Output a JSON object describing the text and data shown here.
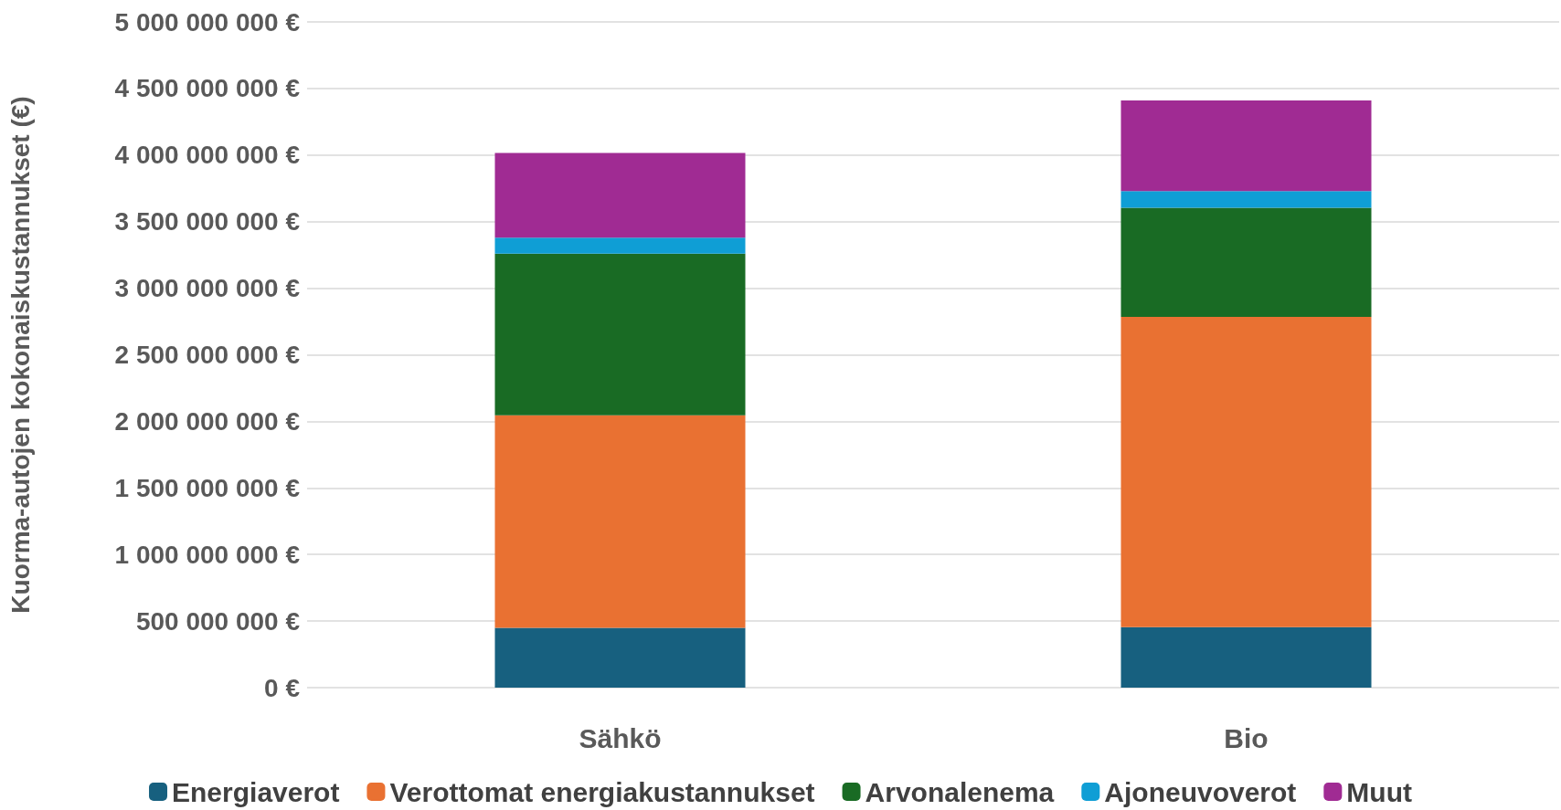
{
  "chart_data": {
    "type": "bar",
    "stacked": true,
    "ylabel": "Kuorma-autojen kokonaiskustannukset (€)",
    "categories": [
      "Sähkö",
      "Bio"
    ],
    "series": [
      {
        "name": "Energiaverot",
        "color": "#17607f",
        "values": [
          450000000,
          455000000
        ]
      },
      {
        "name": "Verottomat energiakustannukset",
        "color": "#e97132",
        "values": [
          1595000000,
          2330000000
        ]
      },
      {
        "name": "Arvonalenema",
        "color": "#196b24",
        "values": [
          1215000000,
          820000000
        ]
      },
      {
        "name": "Ajoneuvoverot",
        "color": "#0f9ed5",
        "values": [
          120000000,
          125000000
        ]
      },
      {
        "name": "Muut",
        "color": "#a02b93",
        "values": [
          635000000,
          680000000
        ]
      }
    ],
    "ylim": [
      0,
      5000000000
    ],
    "yticks": [
      {
        "value": 0,
        "label": "0 €"
      },
      {
        "value": 500000000,
        "label": "500 000 000 €"
      },
      {
        "value": 1000000000,
        "label": "1 000 000 000 €"
      },
      {
        "value": 1500000000,
        "label": "1 500 000 000 €"
      },
      {
        "value": 2000000000,
        "label": "2 000 000 000 €"
      },
      {
        "value": 2500000000,
        "label": "2 500 000 000 €"
      },
      {
        "value": 3000000000,
        "label": "3 000 000 000 €"
      },
      {
        "value": 3500000000,
        "label": "3 500 000 000 €"
      },
      {
        "value": 4000000000,
        "label": "4 000 000 000 €"
      },
      {
        "value": 4500000000,
        "label": "4 500 000 000 €"
      },
      {
        "value": 5000000000,
        "label": "5 000 000 000 €"
      }
    ],
    "grid": "y",
    "legend": "bottom"
  }
}
